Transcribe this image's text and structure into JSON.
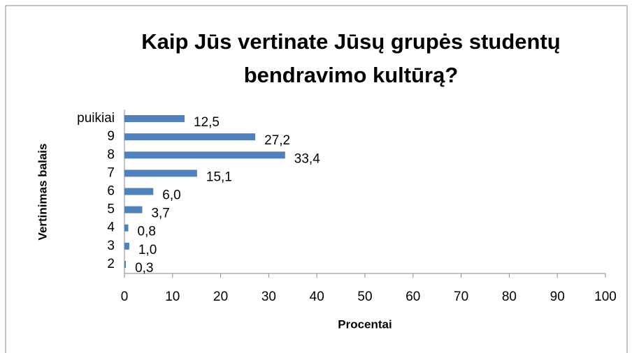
{
  "chart_data": {
    "type": "barh",
    "title": "Kaip Jūs vertinate Jūsų grupės studentų bendravimo kultūrą?",
    "xlabel": "Procentai",
    "ylabel": "Vertinimas balais",
    "categories": [
      "puikiai",
      "9",
      "8",
      "7",
      "6",
      "5",
      "4",
      "3",
      "2"
    ],
    "values": [
      12.5,
      27.2,
      33.4,
      15.1,
      6.0,
      3.7,
      0.8,
      1.0,
      0.3
    ],
    "value_labels": [
      "12,5",
      "27,2",
      "33,4",
      "15,1",
      "6,0",
      "3,7",
      "0,8",
      "1,0",
      "0,3"
    ],
    "color": "#4f81bd",
    "xlim": [
      0,
      100
    ],
    "xticks": [
      0,
      10,
      20,
      30,
      40,
      50,
      60,
      70,
      80,
      90,
      100
    ]
  }
}
